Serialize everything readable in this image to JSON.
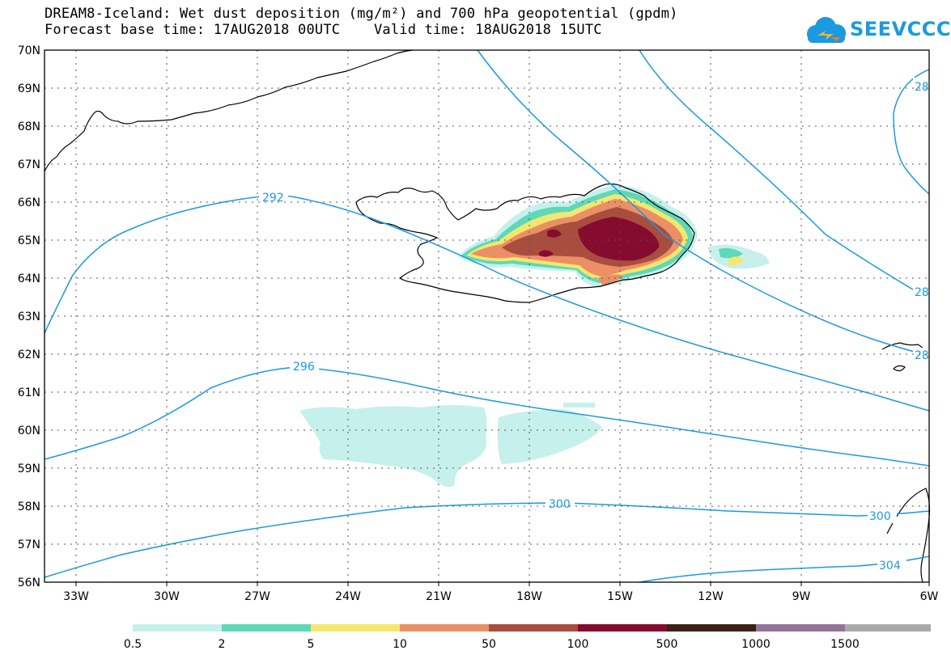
{
  "header": {
    "title_line1": "DREAM8-Iceland: Wet dust deposition (mg/m²) and 700 hPa geopotential (gpdm)",
    "title_line2": "Forecast base time: 17AUG2018 00UTC    Valid time: 18AUG2018 15UTC",
    "logo_text": "SEEVCCC"
  },
  "map": {
    "lat_labels": [
      "70N",
      "69N",
      "68N",
      "67N",
      "66N",
      "65N",
      "64N",
      "63N",
      "62N",
      "61N",
      "60N",
      "59N",
      "58N",
      "57N",
      "56N"
    ],
    "lon_labels": [
      "33W",
      "30W",
      "27W",
      "24W",
      "21W",
      "18W",
      "15W",
      "12W",
      "9W",
      "6W"
    ],
    "contour_labels": [
      "292",
      "296",
      "300",
      "300",
      "304",
      "28",
      "28",
      "28"
    ]
  },
  "colorbar": {
    "colors": [
      "#c6f0ec",
      "#5fd8b8",
      "#f3e76f",
      "#eb9066",
      "#a94d3e",
      "#850b2f",
      "#3c2014",
      "#957399",
      "#aaaaaa"
    ],
    "labels": [
      "0.5",
      "2",
      "5",
      "10",
      "50",
      "100",
      "500",
      "1000",
      "1500"
    ]
  },
  "colors": {
    "contour": "#1a9ae0",
    "coast": "#000000",
    "grid": "#555555"
  }
}
